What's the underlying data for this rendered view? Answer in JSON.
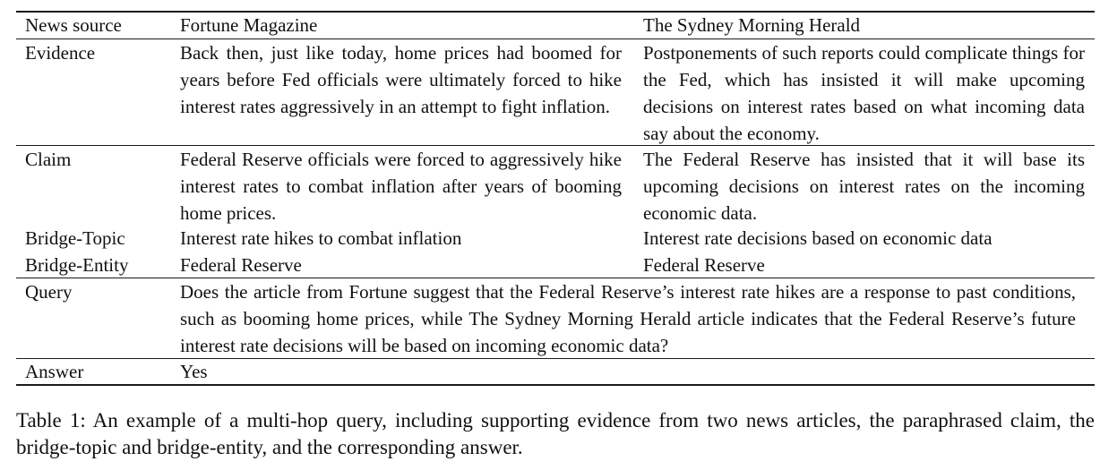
{
  "table": {
    "headers": [
      "News source",
      "Fortune Magazine",
      "The Sydney Morning Herald"
    ],
    "rows": {
      "evidence": {
        "label": "Evidence",
        "fortune": "Back then, just like today, home prices had boomed for years before Fed officials were ultimately forced to hike interest rates aggressively in an attempt to fight inflation.",
        "smh": "Postponements of such reports could complicate things for the Fed, which has insisted it will make upcoming decisions on interest rates based on what incoming data say about the economy."
      },
      "claim": {
        "label": "Claim",
        "fortune": "Federal Reserve officials were forced to aggressively hike interest rates to combat inflation after years of booming home prices.",
        "smh": "The Federal Reserve has insisted that it will base its upcoming decisions on interest rates on the incoming economic data."
      },
      "bridge_topic": {
        "label": "Bridge-Topic",
        "fortune": "Interest rate hikes to combat inflation",
        "smh": "Interest rate decisions based on economic data"
      },
      "bridge_entity": {
        "label": "Bridge-Entity",
        "fortune": "Federal Reserve",
        "smh": "Federal Reserve"
      },
      "query": {
        "label": "Query",
        "text": "Does the article from Fortune suggest that the Federal Reserve’s interest rate hikes are a response to past conditions, such as booming home prices, while The Sydney Morning Herald article indicates that the Federal Reserve’s future interest rate decisions will be based on incoming economic data?"
      },
      "answer": {
        "label": "Answer",
        "text": "Yes"
      }
    }
  },
  "caption": "Table 1: An example of a multi-hop query, including supporting evidence from two news articles, the paraphrased claim, the bridge-topic and bridge-entity, and the corresponding answer."
}
